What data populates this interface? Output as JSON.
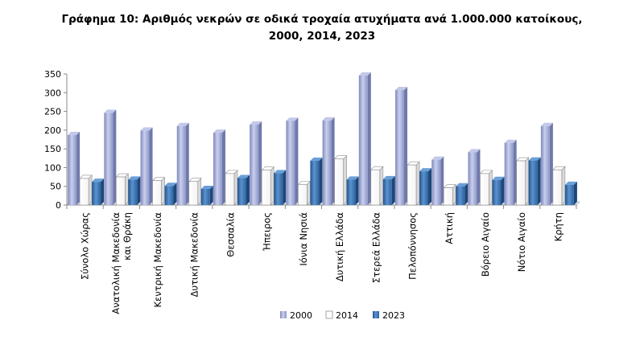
{
  "chart_data": {
    "type": "bar",
    "title": "Γράφημα 10: Αριθμός νεκρών σε οδικά τροχαία ατυχήματα ανά 1.000.000 κατοίκους,",
    "subtitle": "2000, 2014, 2023",
    "xlabel": "",
    "ylabel": "",
    "ylim": [
      0,
      350
    ],
    "yticks": [
      0,
      50,
      100,
      150,
      200,
      250,
      300,
      350
    ],
    "grid": false,
    "legend": "bottom",
    "categories": [
      [
        "Σύνολο Χώρας"
      ],
      [
        "Ανατολική Μακεδονία",
        "και Θράκη"
      ],
      [
        "Κεντρική Μακεδονία"
      ],
      [
        "Δυτική Μακεδονία"
      ],
      [
        "Θεσσαλία"
      ],
      [
        "Ήπειρος"
      ],
      [
        "Ιόνια Νησιά"
      ],
      [
        "Δυτική Ελλάδα"
      ],
      [
        "Στερεά Ελλάδα"
      ],
      [
        "Πελοπόννησος"
      ],
      [
        "Αττική"
      ],
      [
        "Βόρειο Αιγαίο"
      ],
      [
        "Νότιο Αιγαίο"
      ],
      [
        "Κρήτη"
      ]
    ],
    "series": [
      {
        "name": "2000",
        "color": "#a3acd6",
        "values": [
          187,
          246,
          199,
          211,
          193,
          215,
          225,
          226,
          346,
          307,
          121,
          141,
          166,
          211
        ]
      },
      {
        "name": "2014",
        "color": "#ffffff",
        "values": [
          71,
          75,
          65,
          63,
          84,
          93,
          55,
          123,
          94,
          107,
          46,
          84,
          118,
          94
        ]
      },
      {
        "name": "2023",
        "color": "#3b74b4",
        "values": [
          62,
          68,
          51,
          43,
          72,
          85,
          118,
          68,
          69,
          90,
          50,
          67,
          119,
          54
        ]
      }
    ]
  }
}
